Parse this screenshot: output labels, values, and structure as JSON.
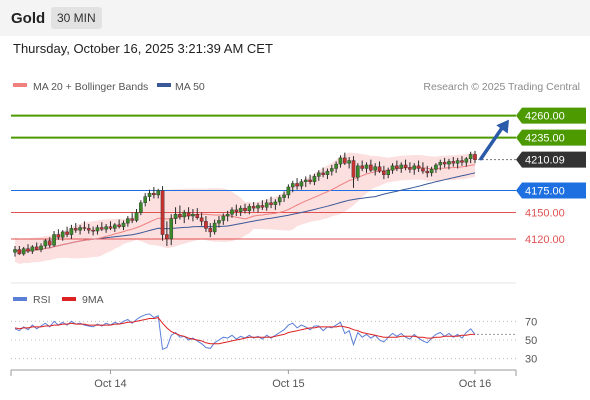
{
  "header": {
    "title": "Gold",
    "interval": "30 MIN"
  },
  "timestamp": "Thursday, October 16, 2025 3:21:39 AM CET",
  "credit": "Research © 2025 Trading Central",
  "colors": {
    "resistance": "#4c9a00",
    "support": "#e05252",
    "pivot": "#1e6fe0",
    "current": "#333333",
    "ma20": "#f08080",
    "ma50": "#3b5998",
    "band": "#fbd4d4",
    "arrow": "#2a5aa8"
  },
  "chart_data": [
    {
      "type": "candlestick",
      "legend": [
        {
          "name": "MA 20 + Bollinger Bands",
          "color": "#f08080"
        },
        {
          "name": "MA 50",
          "color": "#3b5998"
        }
      ],
      "ylim": [
        4070,
        4280
      ],
      "x_ticks": [
        {
          "label": "Oct 14",
          "index": 22
        },
        {
          "label": "Oct 15",
          "index": 63
        },
        {
          "label": "Oct 16",
          "index": 106
        }
      ],
      "levels": [
        {
          "value": "4260.00",
          "kind": "resistance"
        },
        {
          "value": "4235.00",
          "kind": "resistance"
        },
        {
          "value": "4210.09",
          "kind": "current"
        },
        {
          "value": "4175.00",
          "kind": "pivot"
        },
        {
          "value": "4150.00",
          "kind": "support"
        },
        {
          "value": "4120.00",
          "kind": "support"
        }
      ],
      "projection": "up",
      "candles": [
        [
          4105,
          4112,
          4100,
          4108
        ],
        [
          4108,
          4112,
          4102,
          4103
        ],
        [
          4103,
          4111,
          4101,
          4109
        ],
        [
          4109,
          4114,
          4104,
          4106
        ],
        [
          4106,
          4113,
          4103,
          4111
        ],
        [
          4111,
          4116,
          4107,
          4108
        ],
        [
          4108,
          4115,
          4105,
          4112
        ],
        [
          4112,
          4120,
          4109,
          4118
        ],
        [
          4118,
          4122,
          4110,
          4113
        ],
        [
          4113,
          4129,
          4111,
          4125
        ],
        [
          4125,
          4131,
          4119,
          4122
        ],
        [
          4122,
          4130,
          4118,
          4128
        ],
        [
          4128,
          4134,
          4122,
          4125
        ],
        [
          4125,
          4136,
          4120,
          4132
        ],
        [
          4132,
          4138,
          4127,
          4130
        ],
        [
          4130,
          4136,
          4125,
          4133
        ],
        [
          4133,
          4140,
          4129,
          4132
        ],
        [
          4132,
          4137,
          4126,
          4130
        ],
        [
          4130,
          4134,
          4124,
          4129
        ],
        [
          4129,
          4136,
          4125,
          4133
        ],
        [
          4133,
          4139,
          4129,
          4131
        ],
        [
          4131,
          4137,
          4127,
          4134
        ],
        [
          4134,
          4140,
          4130,
          4132
        ],
        [
          4132,
          4138,
          4128,
          4136
        ],
        [
          4136,
          4142,
          4132,
          4134
        ],
        [
          4134,
          4141,
          4130,
          4138
        ],
        [
          4138,
          4146,
          4134,
          4143
        ],
        [
          4143,
          4150,
          4138,
          4141
        ],
        [
          4141,
          4154,
          4139,
          4150
        ],
        [
          4150,
          4164,
          4147,
          4161
        ],
        [
          4161,
          4172,
          4157,
          4168
        ],
        [
          4168,
          4176,
          4163,
          4172
        ],
        [
          4172,
          4179,
          4166,
          4170
        ],
        [
          4170,
          4177,
          4166,
          4175
        ],
        [
          4175,
          4180,
          4118,
          4125
        ],
        [
          4125,
          4140,
          4112,
          4120
        ],
        [
          4120,
          4148,
          4113,
          4143
        ],
        [
          4143,
          4156,
          4137,
          4148
        ],
        [
          4148,
          4158,
          4142,
          4145
        ],
        [
          4145,
          4153,
          4138,
          4150
        ],
        [
          4150,
          4156,
          4142,
          4146
        ],
        [
          4146,
          4154,
          4140,
          4148
        ],
        [
          4148,
          4155,
          4142,
          4144
        ],
        [
          4144,
          4150,
          4135,
          4140
        ],
        [
          4140,
          4146,
          4128,
          4132
        ],
        [
          4132,
          4138,
          4122,
          4128
        ],
        [
          4128,
          4142,
          4125,
          4138
        ],
        [
          4138,
          4146,
          4133,
          4141
        ],
        [
          4141,
          4149,
          4136,
          4146
        ],
        [
          4146,
          4152,
          4140,
          4148
        ],
        [
          4148,
          4156,
          4144,
          4153
        ],
        [
          4153,
          4159,
          4146,
          4151
        ],
        [
          4151,
          4158,
          4146,
          4155
        ],
        [
          4155,
          4160,
          4149,
          4152
        ],
        [
          4152,
          4160,
          4148,
          4157
        ],
        [
          4157,
          4162,
          4151,
          4155
        ],
        [
          4155,
          4161,
          4150,
          4158
        ],
        [
          4158,
          4164,
          4153,
          4156
        ],
        [
          4156,
          4165,
          4152,
          4161
        ],
        [
          4161,
          4168,
          4155,
          4159
        ],
        [
          4159,
          4165,
          4153,
          4162
        ],
        [
          4162,
          4170,
          4158,
          4167
        ],
        [
          4167,
          4174,
          4162,
          4170
        ],
        [
          4170,
          4182,
          4166,
          4179
        ],
        [
          4179,
          4186,
          4173,
          4183
        ],
        [
          4183,
          4189,
          4176,
          4180
        ],
        [
          4180,
          4188,
          4176,
          4185
        ],
        [
          4185,
          4191,
          4179,
          4187
        ],
        [
          4187,
          4193,
          4182,
          4185
        ],
        [
          4185,
          4194,
          4181,
          4191
        ],
        [
          4191,
          4198,
          4186,
          4195
        ],
        [
          4195,
          4201,
          4190,
          4193
        ],
        [
          4193,
          4200,
          4188,
          4197
        ],
        [
          4197,
          4204,
          4192,
          4200
        ],
        [
          4200,
          4208,
          4195,
          4205
        ],
        [
          4205,
          4215,
          4201,
          4212
        ],
        [
          4212,
          4218,
          4204,
          4206
        ],
        [
          4206,
          4213,
          4200,
          4209
        ],
        [
          4209,
          4214,
          4178,
          4190
        ],
        [
          4190,
          4206,
          4186,
          4203
        ],
        [
          4203,
          4209,
          4197,
          4200
        ],
        [
          4200,
          4207,
          4195,
          4204
        ],
        [
          4204,
          4210,
          4196,
          4198
        ],
        [
          4198,
          4206,
          4192,
          4202
        ],
        [
          4202,
          4208,
          4195,
          4197
        ],
        [
          4197,
          4203,
          4188,
          4193
        ],
        [
          4193,
          4201,
          4189,
          4198
        ],
        [
          4198,
          4206,
          4194,
          4203
        ],
        [
          4203,
          4209,
          4197,
          4200
        ],
        [
          4200,
          4207,
          4195,
          4204
        ],
        [
          4204,
          4210,
          4198,
          4201
        ],
        [
          4201,
          4207,
          4195,
          4199
        ],
        [
          4199,
          4206,
          4193,
          4203
        ],
        [
          4203,
          4209,
          4196,
          4200
        ],
        [
          4200,
          4207,
          4194,
          4197
        ],
        [
          4197,
          4203,
          4190,
          4195
        ],
        [
          4195,
          4202,
          4191,
          4199
        ],
        [
          4199,
          4206,
          4195,
          4204
        ],
        [
          4204,
          4210,
          4198,
          4207
        ],
        [
          4207,
          4212,
          4201,
          4205
        ],
        [
          4205,
          4211,
          4199,
          4208
        ],
        [
          4208,
          4213,
          4202,
          4206
        ],
        [
          4206,
          4212,
          4200,
          4209
        ],
        [
          4209,
          4214,
          4203,
          4207
        ],
        [
          4207,
          4213,
          4202,
          4211
        ],
        [
          4211,
          4219,
          4206,
          4216
        ],
        [
          4216,
          4220,
          4206,
          4210
        ]
      ]
    },
    {
      "type": "line",
      "legend": [
        {
          "name": "RSI",
          "color": "#5b7fd6"
        },
        {
          "name": "9MA",
          "color": "#dd2222"
        }
      ],
      "ylim": [
        20,
        80
      ],
      "y_ticks": [
        70,
        50,
        30
      ],
      "rsi": [
        62,
        60,
        64,
        61,
        66,
        62,
        65,
        68,
        64,
        70,
        66,
        69,
        66,
        70,
        67,
        68,
        66,
        65,
        64,
        67,
        65,
        68,
        66,
        69,
        67,
        70,
        72,
        68,
        72,
        75,
        77,
        78,
        74,
        76,
        40,
        42,
        55,
        58,
        53,
        54,
        50,
        52,
        49,
        46,
        42,
        41,
        47,
        50,
        53,
        52,
        55,
        51,
        54,
        52,
        55,
        52,
        54,
        51,
        55,
        52,
        55,
        58,
        61,
        66,
        68,
        63,
        66,
        64,
        61,
        65,
        65,
        60,
        64,
        63,
        66,
        69,
        57,
        60,
        45,
        58,
        53,
        56,
        52,
        55,
        50,
        48,
        53,
        57,
        54,
        57,
        53,
        51,
        56,
        52,
        49,
        47,
        52,
        56,
        58,
        54,
        57,
        53,
        56,
        52,
        58,
        62,
        56
      ],
      "ma9": [
        63,
        62,
        63,
        63,
        64,
        64,
        64,
        65,
        65,
        66,
        66,
        67,
        67,
        68,
        67,
        67,
        67,
        66,
        66,
        66,
        66,
        66,
        66,
        67,
        67,
        68,
        69,
        69,
        70,
        71,
        72,
        73,
        73,
        74,
        68,
        63,
        59,
        57,
        55,
        54,
        52,
        51,
        50,
        49,
        47,
        46,
        46,
        46,
        47,
        48,
        49,
        50,
        51,
        52,
        53,
        53,
        53,
        53,
        53,
        53,
        54,
        55,
        56,
        58,
        59,
        60,
        61,
        62,
        63,
        63,
        64,
        64,
        64,
        64,
        64,
        65,
        64,
        63,
        61,
        60,
        58,
        57,
        56,
        55,
        54,
        53,
        53,
        53,
        53,
        54,
        54,
        54,
        54,
        53,
        53,
        52,
        52,
        53,
        53,
        54,
        54,
        54,
        54,
        55,
        55,
        56,
        56
      ]
    }
  ]
}
